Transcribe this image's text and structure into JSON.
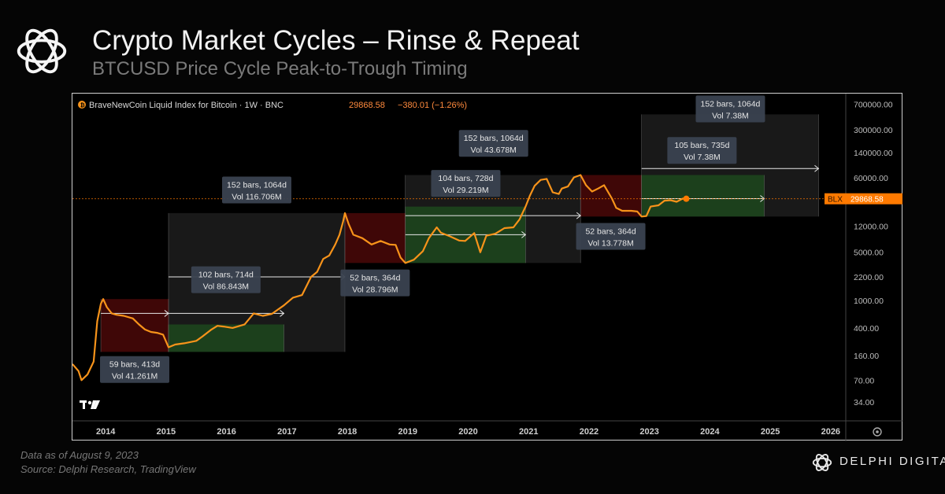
{
  "header": {
    "title": "Crypto Market Cycles – Rinse & Repeat",
    "subtitle": "BTCUSD Price Cycle Peak-to-Trough Timing"
  },
  "footer": {
    "data_note": "Data as of August 9, 2023",
    "source_note": "Source: Delphi Research, TradingView",
    "brand": "DELPHI DIGITAL"
  },
  "colors": {
    "price_line": "#f7931a",
    "bear_zone": "#5a0a0a",
    "bull_zone": "#1e4d1e",
    "cycle_zone": "#2e2e2e",
    "last_price_badge": "#ff7a00"
  },
  "icons": [
    "delphi-logo-icon",
    "tradingview-icon",
    "settings-icon",
    "bitcoin-icon"
  ],
  "chart_data": {
    "type": "line",
    "title": "BraveNewCoin Liquid Index for Bitcoin · 1W · BNC",
    "legend": {
      "last_value": "29868.58",
      "change": "−380.01 (−1.26%)"
    },
    "y_scale": "log",
    "ylim": [
      20,
      900000
    ],
    "xlim": [
      2013.45,
      2026.25
    ],
    "x_ticks": [
      "2014",
      "2015",
      "2016",
      "2017",
      "2018",
      "2019",
      "2020",
      "2021",
      "2022",
      "2023",
      "2024",
      "2025",
      "2026"
    ],
    "y_ticks": [
      "700000.00",
      "300000.00",
      "140000.00",
      "60000.00",
      "12000.00",
      "5000.00",
      "2200.00",
      "1000.00",
      "400.00",
      "160.00",
      "70.00",
      "34.00"
    ],
    "last_price": {
      "label": "BLX",
      "value": "29868.58",
      "y": 29868.58
    },
    "series": [
      {
        "name": "BTCUSD",
        "x": [
          2013.45,
          2013.55,
          2013.6,
          2013.7,
          2013.8,
          2013.86,
          2013.92,
          2013.96,
          2014.02,
          2014.1,
          2014.18,
          2014.3,
          2014.45,
          2014.55,
          2014.65,
          2014.75,
          2014.85,
          2014.95,
          2015.04,
          2015.15,
          2015.3,
          2015.5,
          2015.6,
          2015.75,
          2015.85,
          2015.95,
          2016.1,
          2016.3,
          2016.45,
          2016.6,
          2016.75,
          2016.95,
          2017.1,
          2017.25,
          2017.4,
          2017.5,
          2017.6,
          2017.7,
          2017.8,
          2017.87,
          2017.93,
          2017.96,
          2018.02,
          2018.1,
          2018.25,
          2018.4,
          2018.55,
          2018.7,
          2018.8,
          2018.88,
          2018.96,
          2019.1,
          2019.25,
          2019.35,
          2019.48,
          2019.55,
          2019.7,
          2019.85,
          2019.95,
          2020.1,
          2020.2,
          2020.3,
          2020.45,
          2020.6,
          2020.75,
          2020.85,
          2020.95,
          2021.02,
          2021.1,
          2021.2,
          2021.3,
          2021.4,
          2021.5,
          2021.55,
          2021.65,
          2021.75,
          2021.86,
          2021.95,
          2022.05,
          2022.15,
          2022.25,
          2022.38,
          2022.45,
          2022.55,
          2022.7,
          2022.8,
          2022.87,
          2022.95,
          2023.02,
          2023.15,
          2023.25,
          2023.35,
          2023.45,
          2023.55,
          2023.61
        ],
        "y": [
          120,
          95,
          70,
          85,
          130,
          500,
          900,
          1050,
          800,
          650,
          620,
          600,
          550,
          450,
          380,
          350,
          340,
          320,
          210,
          230,
          240,
          260,
          300,
          380,
          430,
          420,
          400,
          450,
          650,
          600,
          640,
          850,
          1100,
          1200,
          2200,
          2600,
          4000,
          4500,
          6500,
          9000,
          14000,
          18500,
          13000,
          9000,
          8000,
          6500,
          7300,
          6500,
          6400,
          4200,
          3500,
          3900,
          5200,
          8000,
          11500,
          9600,
          8500,
          7400,
          7300,
          9500,
          5000,
          8700,
          9300,
          11200,
          11500,
          15000,
          23000,
          33000,
          46000,
          56000,
          58000,
          37000,
          35000,
          42000,
          45000,
          61000,
          66000,
          47000,
          38000,
          42000,
          47000,
          30000,
          22000,
          20000,
          20000,
          19500,
          16500,
          16800,
          23000,
          24000,
          28000,
          28500,
          27000,
          30000,
          29869
        ]
      }
    ],
    "zones": [
      {
        "type": "bear",
        "x": [
          2013.92,
          2015.04
        ],
        "y": [
          180,
          1050
        ]
      },
      {
        "type": "bull",
        "x": [
          2015.04,
          2016.95
        ],
        "y": [
          180,
          450
        ]
      },
      {
        "type": "cycle",
        "x": [
          2015.04,
          2017.96
        ],
        "y": [
          180,
          18500
        ]
      },
      {
        "type": "bear",
        "x": [
          2017.96,
          2018.96
        ],
        "y": [
          3500,
          18500
        ]
      },
      {
        "type": "bull",
        "x": [
          2018.96,
          2020.95
        ],
        "y": [
          3500,
          23000
        ]
      },
      {
        "type": "cycle",
        "x": [
          2018.96,
          2021.86
        ],
        "y": [
          3500,
          66000
        ]
      },
      {
        "type": "bear",
        "x": [
          2021.86,
          2022.87
        ],
        "y": [
          16500,
          66000
        ]
      },
      {
        "type": "bull",
        "x": [
          2022.87,
          2024.9
        ],
        "y": [
          16500,
          66000
        ]
      },
      {
        "type": "cycle",
        "x": [
          2022.87,
          2025.8
        ],
        "y": [
          16500,
          66000
        ]
      },
      {
        "type": "cycle",
        "x": [
          2022.87,
          2025.8
        ],
        "y": [
          66000,
          500000
        ]
      }
    ],
    "arrows": [
      {
        "x": [
          2013.92,
          2015.04
        ],
        "y": 650
      },
      {
        "x": [
          2015.04,
          2016.95
        ],
        "y": 650
      },
      {
        "x": [
          2015.04,
          2017.96
        ],
        "y": 2200
      },
      {
        "x": [
          2018.96,
          2020.95
        ],
        "y": 9000
      },
      {
        "x": [
          2018.96,
          2021.86
        ],
        "y": 17000
      },
      {
        "x": [
          2022.87,
          2024.9
        ],
        "y": 30000
      },
      {
        "x": [
          2022.87,
          2025.8
        ],
        "y": 82000
      }
    ],
    "annotations": [
      {
        "line1": "59 bars, 413d",
        "line2": "Vol 41.261M",
        "x": 2014.48,
        "y": 100
      },
      {
        "line1": "102 bars, 714d",
        "line2": "Vol 86.843M",
        "x": 2015.99,
        "y": 2000
      },
      {
        "line1": "152 bars, 1064d",
        "line2": "Vol 116.706M",
        "x": 2016.5,
        "y": 40000
      },
      {
        "line1": "52 bars, 364d",
        "line2": "Vol 28.796M",
        "x": 2018.46,
        "y": 1800
      },
      {
        "line1": "104 bars, 728d",
        "line2": "Vol 29.219M",
        "x": 2019.96,
        "y": 50000
      },
      {
        "line1": "152 bars, 1064d",
        "line2": "Vol 43.678M",
        "x": 2020.42,
        "y": 190000
      },
      {
        "line1": "52 bars, 364d",
        "line2": "Vol 13.778M",
        "x": 2022.36,
        "y": 8500
      },
      {
        "line1": "105 bars, 735d",
        "line2": "Vol 7.38M",
        "x": 2023.87,
        "y": 150000
      },
      {
        "line1": "152 bars, 1064d",
        "line2": "Vol 7.38M",
        "x": 2024.34,
        "y": 600000
      }
    ]
  }
}
